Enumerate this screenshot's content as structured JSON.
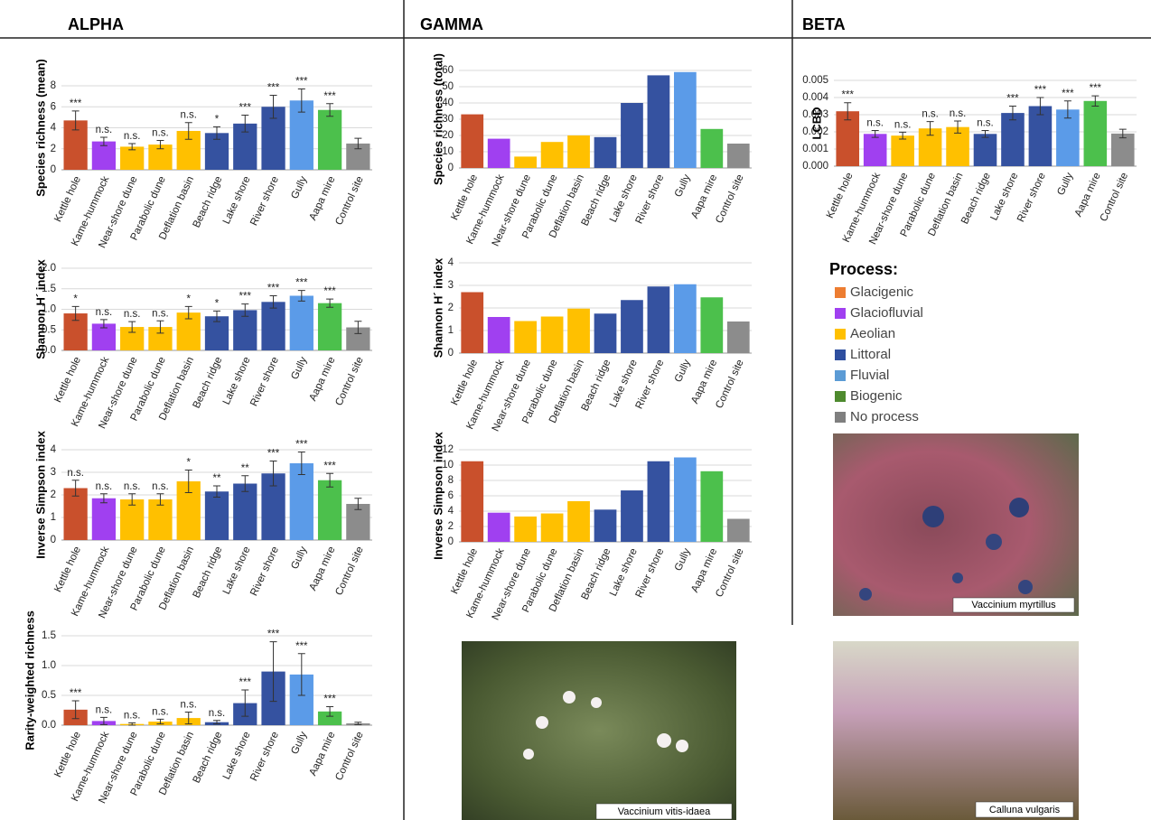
{
  "headers": [
    "ALPHA",
    "GAMMA",
    "BETA"
  ],
  "chart_data": [
    {
      "type": "bar",
      "y_label": "Species richness (mean)",
      "categories": [
        "Kettle hole",
        "Kame-hummock",
        "Near-shore dune",
        "Parabolic dune",
        "Deflation basin",
        "Beach ridge",
        "Lake shore",
        "River shore",
        "Gully",
        "Aapa mire",
        "Control site"
      ],
      "colors": [
        "#c9502c",
        "#a040f0",
        "#ffc000",
        "#ffc000",
        "#ffc000",
        "#3552a0",
        "#3552a0",
        "#3552a0",
        "#5b9be8",
        "#4cc04c",
        "#8c8c8c"
      ],
      "values": [
        4.7,
        2.7,
        2.2,
        2.4,
        3.7,
        3.5,
        4.4,
        6.0,
        6.6,
        5.7,
        2.5
      ],
      "errors": [
        0.9,
        0.4,
        0.3,
        0.4,
        0.8,
        0.6,
        0.8,
        1.1,
        1.1,
        0.6,
        0.5
      ],
      "significance": [
        "***",
        "n.s.",
        "n.s.",
        "n.s.",
        "n.s.",
        "*",
        "***",
        "***",
        "***",
        "***",
        null
      ],
      "ylim": [
        0,
        8
      ],
      "yticks": [
        0,
        2,
        4,
        6,
        8
      ],
      "grid": true
    },
    {
      "type": "bar",
      "y_label": "Shannon H´ index",
      "categories": [
        "Kettle hole",
        "Kame-hummock",
        "Near-shore dune",
        "Parabolic dune",
        "Deflation basin",
        "Beach ridge",
        "Lake shore",
        "River shore",
        "Gully",
        "Aapa mire",
        "Control site"
      ],
      "colors": [
        "#c9502c",
        "#a040f0",
        "#ffc000",
        "#ffc000",
        "#ffc000",
        "#3552a0",
        "#3552a0",
        "#3552a0",
        "#5b9be8",
        "#4cc04c",
        "#8c8c8c"
      ],
      "values": [
        0.9,
        0.65,
        0.57,
        0.57,
        0.92,
        0.83,
        0.98,
        1.18,
        1.33,
        1.15,
        0.56
      ],
      "errors": [
        0.17,
        0.1,
        0.13,
        0.15,
        0.15,
        0.13,
        0.15,
        0.15,
        0.13,
        0.1,
        0.15
      ],
      "significance": [
        "*",
        "n.s.",
        "n.s.",
        "n.s.",
        "*",
        "*",
        "***",
        "***",
        "***",
        "***",
        null
      ],
      "ylim": [
        0,
        2
      ],
      "yticks": [
        {
          "value": 0,
          "label": "0.0"
        },
        {
          "value": 0.5,
          "label": "0.5"
        },
        {
          "value": 1,
          "label": "1.0"
        },
        {
          "value": 1.5,
          "label": "1.5"
        },
        {
          "value": 2,
          "label": "2.0"
        }
      ],
      "grid": true
    },
    {
      "type": "bar",
      "y_label": "Inverse Simpson index",
      "categories": [
        "Kettle hole",
        "Kame-hummock",
        "Near-shore dune",
        "Parabolic dune",
        "Deflation basin",
        "Beach ridge",
        "Lake shore",
        "River shore",
        "Gully",
        "Aapa mire",
        "Control site"
      ],
      "colors": [
        "#c9502c",
        "#a040f0",
        "#ffc000",
        "#ffc000",
        "#ffc000",
        "#3552a0",
        "#3552a0",
        "#3552a0",
        "#5b9be8",
        "#4cc04c",
        "#8c8c8c"
      ],
      "values": [
        2.3,
        1.85,
        1.8,
        1.8,
        2.6,
        2.15,
        2.5,
        2.95,
        3.4,
        2.65,
        1.6
      ],
      "errors": [
        0.35,
        0.2,
        0.25,
        0.25,
        0.5,
        0.25,
        0.35,
        0.55,
        0.5,
        0.3,
        0.25
      ],
      "significance": [
        "n.s.",
        "n.s.",
        "n.s.",
        "n.s.",
        "*",
        "**",
        "**",
        "***",
        "***",
        "***",
        null
      ],
      "ylim": [
        0,
        4
      ],
      "yticks": [
        0,
        1,
        2,
        3,
        4
      ],
      "grid": true
    },
    {
      "type": "bar",
      "y_label": "Rarity-weighted richness",
      "categories": [
        "Kettle hole",
        "Kame-hummock",
        "Near-shore dune",
        "Parabolic dune",
        "Deflation basin",
        "Beach ridge",
        "Lake shore",
        "River shore",
        "Gully",
        "Aapa mire",
        "Control site"
      ],
      "colors": [
        "#c9502c",
        "#a040f0",
        "#ffc000",
        "#ffc000",
        "#ffc000",
        "#3552a0",
        "#3552a0",
        "#3552a0",
        "#5b9be8",
        "#4cc04c",
        "#8c8c8c"
      ],
      "values": [
        0.26,
        0.07,
        0.02,
        0.06,
        0.12,
        0.05,
        0.37,
        0.9,
        0.85,
        0.23,
        0.03
      ],
      "errors": [
        0.15,
        0.06,
        0.02,
        0.04,
        0.1,
        0.03,
        0.22,
        0.5,
        0.35,
        0.08,
        0.02
      ],
      "significance": [
        "***",
        "n.s.",
        "n.s.",
        "n.s.",
        "n.s.",
        "n.s.",
        "***",
        "***",
        "***",
        "***",
        null
      ],
      "ylim": [
        0,
        1.5
      ],
      "yticks": [
        {
          "value": 0,
          "label": "0.0"
        },
        {
          "value": 0.5,
          "label": "0.5"
        },
        {
          "value": 1,
          "label": "1.0"
        },
        {
          "value": 1.5,
          "label": "1.5"
        }
      ],
      "grid": true
    },
    {
      "type": "bar",
      "y_label": "Species richness (total)",
      "categories": [
        "Kettle hole",
        "Kame-hummock",
        "Near-shore dune",
        "Parabolic dune",
        "Deflation basin",
        "Beach ridge",
        "Lake shore",
        "River shore",
        "Gully",
        "Aapa mire",
        "Control site"
      ],
      "colors": [
        "#c9502c",
        "#a040f0",
        "#ffc000",
        "#ffc000",
        "#ffc000",
        "#3552a0",
        "#3552a0",
        "#3552a0",
        "#5b9be8",
        "#4cc04c",
        "#8c8c8c"
      ],
      "values": [
        33,
        18,
        7,
        16,
        20,
        19,
        40,
        57,
        59,
        24,
        15
      ],
      "ylim": [
        0,
        60
      ],
      "yticks": [
        0,
        10,
        20,
        30,
        40,
        50,
        60
      ],
      "grid": true
    },
    {
      "type": "bar",
      "y_label": "Shannon H´ index",
      "categories": [
        "Kettle hole",
        "Kame-hummock",
        "Near-shore dune",
        "Parabolic dune",
        "Deflation basin",
        "Beach ridge",
        "Lake shore",
        "River shore",
        "Gully",
        "Aapa mire",
        "Control site"
      ],
      "colors": [
        "#c9502c",
        "#a040f0",
        "#ffc000",
        "#ffc000",
        "#ffc000",
        "#3552a0",
        "#3552a0",
        "#3552a0",
        "#5b9be8",
        "#4cc04c",
        "#8c8c8c"
      ],
      "values": [
        2.7,
        1.6,
        1.42,
        1.62,
        1.97,
        1.75,
        2.35,
        2.95,
        3.05,
        2.47,
        1.4
      ],
      "ylim": [
        0,
        4
      ],
      "yticks": [
        0,
        1,
        2,
        3,
        4
      ],
      "grid": true
    },
    {
      "type": "bar",
      "y_label": "Inverse Simpson index",
      "categories": [
        "Kettle hole",
        "Kame-hummock",
        "Near-shore dune",
        "Parabolic dune",
        "Deflation basin",
        "Beach ridge",
        "Lake shore",
        "River shore",
        "Gully",
        "Aapa mire",
        "Control site"
      ],
      "colors": [
        "#c9502c",
        "#a040f0",
        "#ffc000",
        "#ffc000",
        "#ffc000",
        "#3552a0",
        "#3552a0",
        "#3552a0",
        "#5b9be8",
        "#4cc04c",
        "#8c8c8c"
      ],
      "values": [
        10.5,
        3.8,
        3.3,
        3.7,
        5.3,
        4.2,
        6.7,
        10.5,
        11,
        9.2,
        3.0
      ],
      "ylim": [
        0,
        12
      ],
      "yticks": [
        0,
        2,
        4,
        6,
        8,
        10,
        12
      ],
      "grid": true
    },
    {
      "type": "bar",
      "y_label": "LCBD",
      "categories": [
        "Kettle hole",
        "Kame-hummock",
        "Near-shore dune",
        "Parabolic dune",
        "Deflation basin",
        "Beach ridge",
        "Lake shore",
        "River shore",
        "Gully",
        "Aapa mire",
        "Control site"
      ],
      "colors": [
        "#c9502c",
        "#a040f0",
        "#ffc000",
        "#ffc000",
        "#ffc000",
        "#3552a0",
        "#3552a0",
        "#3552a0",
        "#5b9be8",
        "#4cc04c",
        "#8c8c8c"
      ],
      "values": [
        0.0032,
        0.00188,
        0.00178,
        0.0022,
        0.00228,
        0.00188,
        0.0031,
        0.0035,
        0.0033,
        0.0038,
        0.0019
      ],
      "errors": [
        0.0005,
        0.0002,
        0.0002,
        0.0004,
        0.00035,
        0.0002,
        0.0004,
        0.0005,
        0.0005,
        0.0003,
        0.00025
      ],
      "significance": [
        "***",
        "n.s.",
        "n.s.",
        "n.s.",
        "n.s.",
        "n.s.",
        "***",
        "***",
        "***",
        "***",
        null
      ],
      "ylim": [
        0,
        0.005
      ],
      "yticks": [
        {
          "value": 0,
          "label": "0.000"
        },
        {
          "value": 0.001,
          "label": "0.001"
        },
        {
          "value": 0.002,
          "label": "0.002"
        },
        {
          "value": 0.003,
          "label": "0.003"
        },
        {
          "value": 0.004,
          "label": "0.004"
        },
        {
          "value": 0.005,
          "label": "0.005"
        }
      ],
      "grid": true
    }
  ],
  "legend": {
    "title": "Process:",
    "items": [
      {
        "label": "Glacigenic",
        "color": "#ed7d31"
      },
      {
        "label": "Glaciofluvial",
        "color": "#a040f0"
      },
      {
        "label": "Aeolian",
        "color": "#ffc000"
      },
      {
        "label": "Littoral",
        "color": "#2f4f9f"
      },
      {
        "label": "Fluvial",
        "color": "#5b9bd5"
      },
      {
        "label": "Biogenic",
        "color": "#4e8a2e"
      },
      {
        "label": "No process",
        "color": "#7f7f7f"
      }
    ]
  },
  "photos": [
    {
      "caption": "Vaccinium myrtillus"
    },
    {
      "caption": "Vaccinium vitis-idaea"
    },
    {
      "caption": "Calluna vulgaris"
    }
  ]
}
